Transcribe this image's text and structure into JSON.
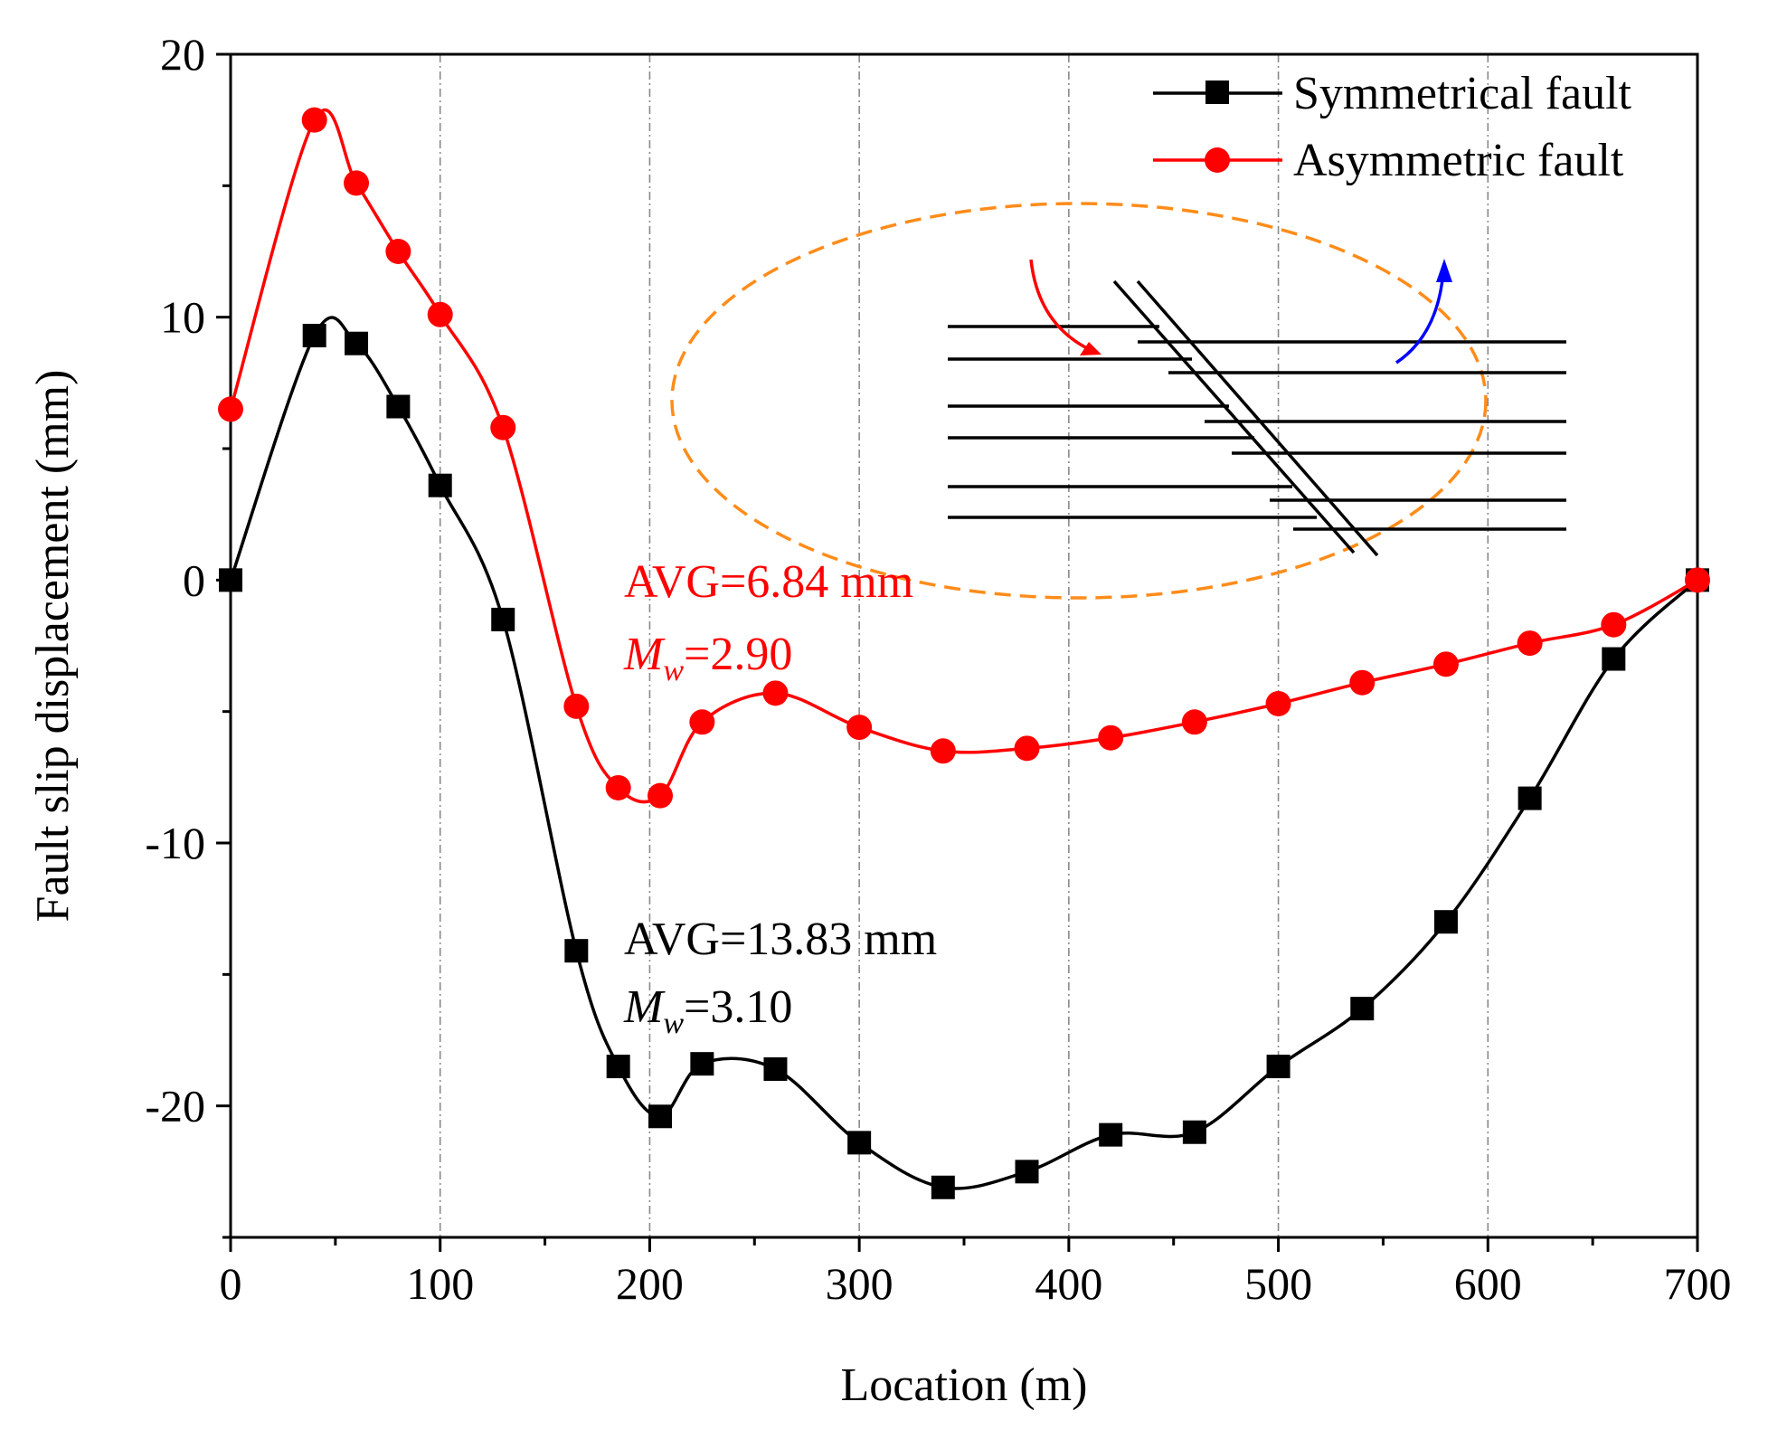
{
  "chart_data": {
    "type": "line",
    "title": "",
    "xlabel": "Location (m)",
    "ylabel": "Fault slip displacement (mm)",
    "xlim": [
      0,
      700
    ],
    "ylim": [
      -25,
      20
    ],
    "xticks": [
      0,
      100,
      200,
      300,
      400,
      500,
      600,
      700
    ],
    "yticks": [
      -20,
      -10,
      0,
      10,
      20
    ],
    "grid": "vertical dash-dot at x ticks",
    "legend_position": "top-right",
    "series": [
      {
        "name": "Symmetrical fault",
        "color": "#000000",
        "marker": "square",
        "x": [
          0,
          40,
          60,
          80,
          100,
          130,
          165,
          185,
          205,
          225,
          260,
          300,
          340,
          380,
          420,
          460,
          500,
          540,
          580,
          620,
          660,
          700
        ],
        "y": [
          0,
          9.3,
          9.0,
          6.6,
          3.6,
          -1.5,
          -14.1,
          -18.5,
          -20.4,
          -18.4,
          -18.6,
          -21.4,
          -23.1,
          -22.5,
          -21.1,
          -21.0,
          -18.5,
          -16.3,
          -13.0,
          -8.3,
          -3.0,
          0
        ]
      },
      {
        "name": "Asymmetric fault",
        "color": "#ff0000",
        "marker": "circle",
        "x": [
          0,
          40,
          60,
          80,
          100,
          130,
          165,
          185,
          205,
          225,
          260,
          300,
          340,
          380,
          420,
          460,
          500,
          540,
          580,
          620,
          660,
          700
        ],
        "y": [
          6.5,
          17.5,
          15.1,
          12.5,
          10.1,
          5.8,
          -4.8,
          -7.9,
          -8.2,
          -5.4,
          -4.3,
          -5.6,
          -6.5,
          -6.4,
          -6.0,
          -5.4,
          -4.7,
          -3.9,
          -3.2,
          -2.4,
          -1.7,
          0
        ]
      }
    ],
    "annotations": [
      {
        "id": "asym",
        "avg": "AVG=6.84 mm",
        "mw_symbol": "M",
        "mw_sub": "w",
        "mw_value": "=2.90",
        "color": "#ff0000"
      },
      {
        "id": "sym",
        "avg": "AVG=13.83 mm",
        "mw_symbol": "M",
        "mw_sub": "w",
        "mw_value": "=3.10",
        "color": "#000000"
      }
    ],
    "inset": {
      "description": "fault schematic",
      "ellipse_color": "#ff8c1a",
      "down_arrow_color": "#ff0000",
      "up_arrow_color": "#0000ff"
    }
  }
}
